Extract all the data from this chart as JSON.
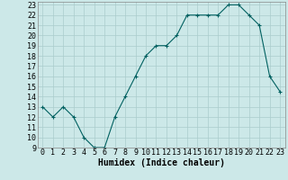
{
  "title": "",
  "xlabel": "Humidex (Indice chaleur)",
  "ylabel": "",
  "x": [
    0,
    1,
    2,
    3,
    4,
    5,
    6,
    7,
    8,
    9,
    10,
    11,
    12,
    13,
    14,
    15,
    16,
    17,
    18,
    19,
    20,
    21,
    22,
    23
  ],
  "y": [
    13,
    12,
    13,
    12,
    10,
    9,
    9,
    12,
    14,
    16,
    18,
    19,
    19,
    20,
    22,
    22,
    22,
    22,
    23,
    23,
    22,
    21,
    16,
    14.5
  ],
  "ylim": [
    9,
    23
  ],
  "xlim": [
    -0.5,
    23.5
  ],
  "line_color": "#006060",
  "marker": "+",
  "marker_color": "#006060",
  "bg_color": "#cce8e8",
  "grid_color": "#aacccc",
  "tick_fontsize": 6,
  "label_fontsize": 7
}
